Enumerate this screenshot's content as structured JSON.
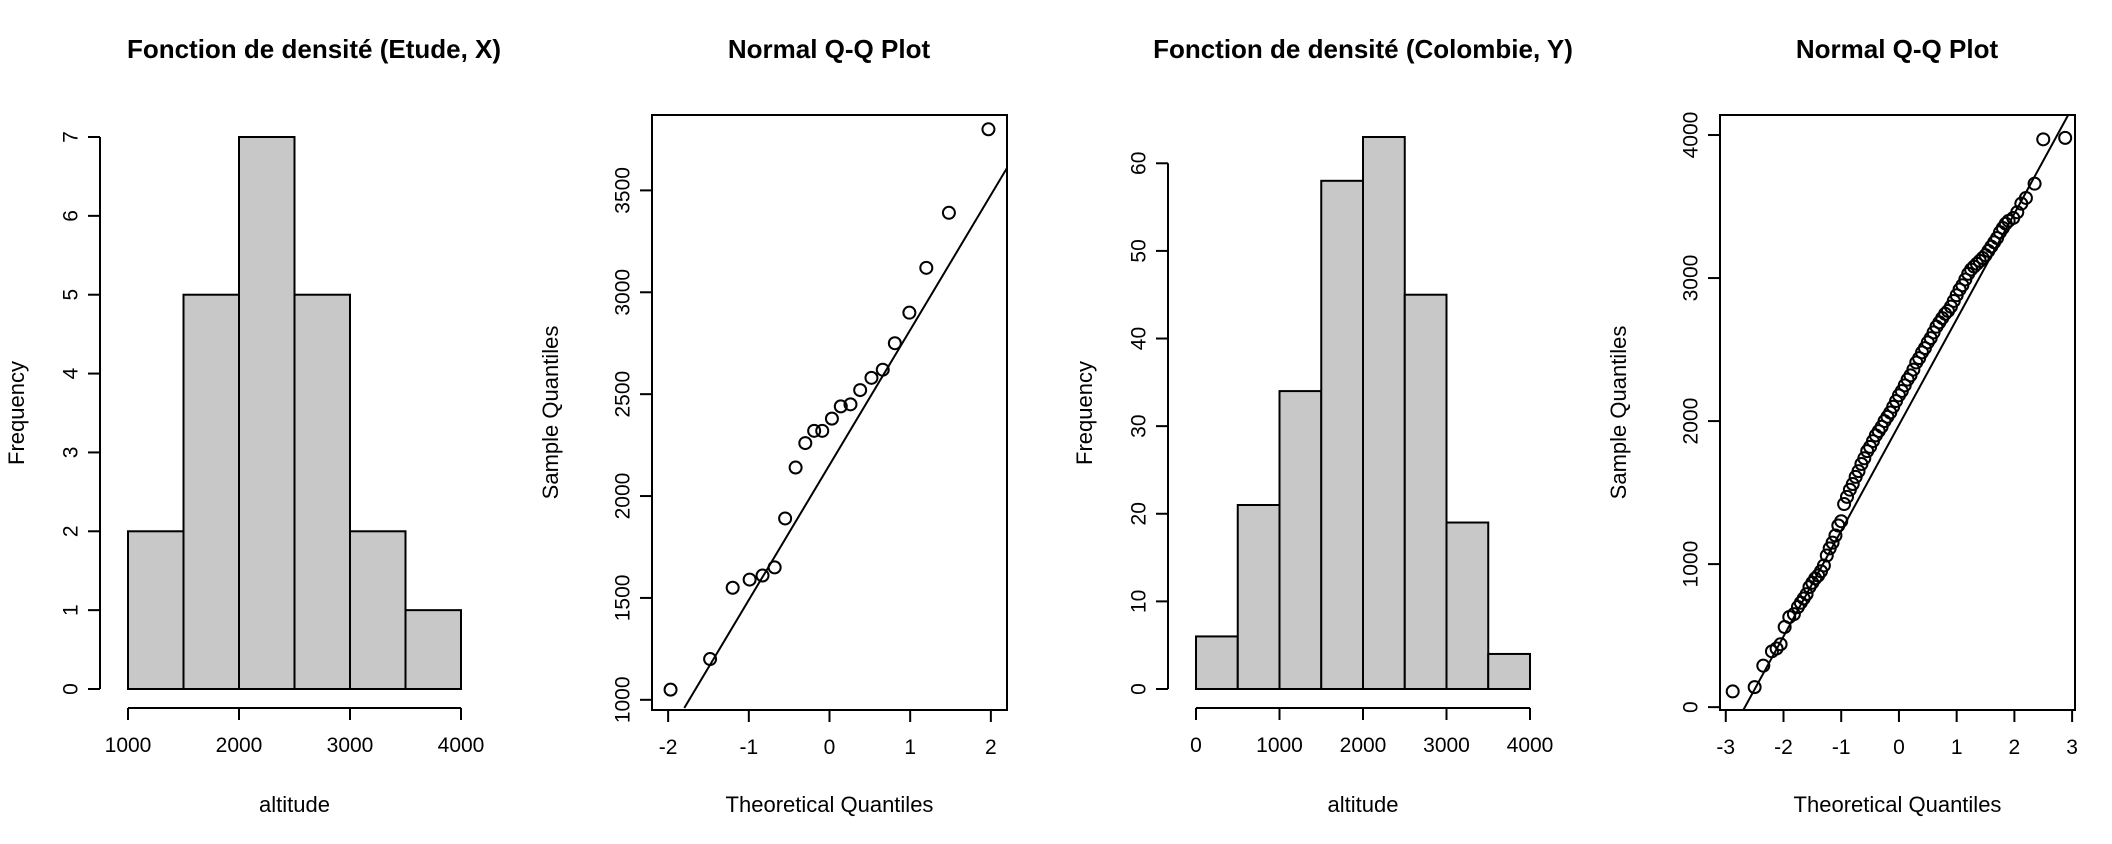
{
  "chart_data": [
    {
      "type": "bar",
      "title": "Fonction de densité (Etude, X)",
      "xlabel": "altitude",
      "ylabel": "Frequency",
      "bin_edges": [
        1000,
        1500,
        2000,
        2500,
        3000,
        3500,
        4000
      ],
      "values": [
        2,
        5,
        7,
        5,
        2,
        1
      ],
      "xlim": [
        1000,
        4000
      ],
      "ylim": [
        0,
        7
      ],
      "xticks": [
        1000,
        2000,
        3000,
        4000
      ],
      "yticks": [
        0,
        1,
        2,
        3,
        4,
        5,
        6,
        7
      ],
      "bar_color": "#c8c8c8"
    },
    {
      "type": "scatter",
      "title": "Normal Q-Q Plot",
      "xlabel": "Theoretical Quantiles",
      "ylabel": "Sample Quantiles",
      "x": [
        -1.97,
        -1.48,
        -1.2,
        -0.99,
        -0.83,
        -0.68,
        -0.55,
        -0.42,
        -0.3,
        -0.19,
        -0.09,
        0.03,
        0.14,
        0.26,
        0.38,
        0.52,
        0.66,
        0.81,
        0.99,
        1.2,
        1.48,
        1.97
      ],
      "y": [
        1050,
        1200,
        1550,
        1590,
        1610,
        1650,
        1890,
        2140,
        2260,
        2320,
        2320,
        2380,
        2440,
        2450,
        2520,
        2580,
        2620,
        2750,
        2900,
        3120,
        3390,
        3800
      ],
      "qq_line": {
        "x": [
          -1.8,
          2.2
        ],
        "y": [
          960,
          3610
        ]
      },
      "xlim": [
        -2.2,
        2.2
      ],
      "ylim": [
        950,
        3870
      ],
      "xticks": [
        -2,
        -1,
        0,
        1,
        2
      ],
      "yticks": [
        1000,
        1500,
        2000,
        2500,
        3000,
        3500
      ],
      "grid": false
    },
    {
      "type": "bar",
      "title": "Fonction de densité (Colombie, Y)",
      "xlabel": "altitude",
      "ylabel": "Frequency",
      "bin_edges": [
        0,
        500,
        1000,
        1500,
        2000,
        2500,
        3000,
        3500,
        4000
      ],
      "values": [
        6,
        21,
        34,
        58,
        63,
        45,
        19,
        4
      ],
      "xlim": [
        0,
        4000
      ],
      "ylim": [
        0,
        63
      ],
      "xticks": [
        0,
        1000,
        2000,
        3000,
        4000
      ],
      "yticks": [
        0,
        10,
        20,
        30,
        40,
        50,
        60
      ],
      "bar_color": "#c8c8c8"
    },
    {
      "type": "scatter",
      "title": "Normal Q-Q Plot",
      "xlabel": "Theoretical Quantiles",
      "ylabel": "Sample Quantiles",
      "x": [
        -2.88,
        -2.5,
        -2.35,
        -2.2,
        -2.12,
        -2.05,
        -1.98,
        -1.9,
        -1.82,
        -1.75,
        -1.7,
        -1.65,
        -1.6,
        -1.55,
        -1.5,
        -1.45,
        -1.4,
        -1.35,
        -1.3,
        -1.25,
        -1.2,
        -1.15,
        -1.1,
        -1.05,
        -1.0,
        -0.95,
        -0.9,
        -0.85,
        -0.8,
        -0.75,
        -0.7,
        -0.65,
        -0.6,
        -0.55,
        -0.5,
        -0.45,
        -0.4,
        -0.35,
        -0.3,
        -0.25,
        -0.2,
        -0.15,
        -0.1,
        -0.05,
        0.0,
        0.05,
        0.1,
        0.15,
        0.2,
        0.25,
        0.3,
        0.35,
        0.4,
        0.45,
        0.5,
        0.55,
        0.6,
        0.65,
        0.7,
        0.75,
        0.8,
        0.85,
        0.9,
        0.95,
        1.0,
        1.05,
        1.1,
        1.15,
        1.2,
        1.25,
        1.3,
        1.35,
        1.4,
        1.45,
        1.5,
        1.55,
        1.6,
        1.65,
        1.7,
        1.75,
        1.8,
        1.85,
        1.9,
        1.98,
        2.05,
        2.12,
        2.2,
        2.35,
        2.5,
        2.88
      ],
      "y": [
        110,
        140,
        290,
        390,
        410,
        440,
        560,
        630,
        650,
        700,
        730,
        760,
        790,
        840,
        870,
        900,
        920,
        950,
        990,
        1060,
        1110,
        1150,
        1200,
        1270,
        1300,
        1420,
        1470,
        1520,
        1560,
        1610,
        1650,
        1700,
        1740,
        1790,
        1820,
        1860,
        1900,
        1930,
        1960,
        2000,
        2030,
        2060,
        2100,
        2140,
        2180,
        2210,
        2250,
        2290,
        2320,
        2360,
        2410,
        2440,
        2480,
        2510,
        2550,
        2580,
        2620,
        2660,
        2690,
        2720,
        2750,
        2770,
        2800,
        2840,
        2880,
        2920,
        2950,
        2990,
        3030,
        3060,
        3080,
        3100,
        3120,
        3140,
        3160,
        3190,
        3220,
        3250,
        3280,
        3320,
        3350,
        3380,
        3400,
        3420,
        3460,
        3520,
        3560,
        3660,
        3970,
        3980
      ],
      "qq_line": {
        "x": [
          -2.75,
          3.0
        ],
        "y": [
          -60,
          4190
        ]
      },
      "xlim": [
        -3.1,
        3.05
      ],
      "ylim": [
        -20,
        4140
      ],
      "xticks": [
        -3,
        -2,
        -1,
        0,
        1,
        2,
        3
      ],
      "yticks": [
        0,
        1000,
        2000,
        3000,
        4000
      ],
      "grid": false
    }
  ]
}
